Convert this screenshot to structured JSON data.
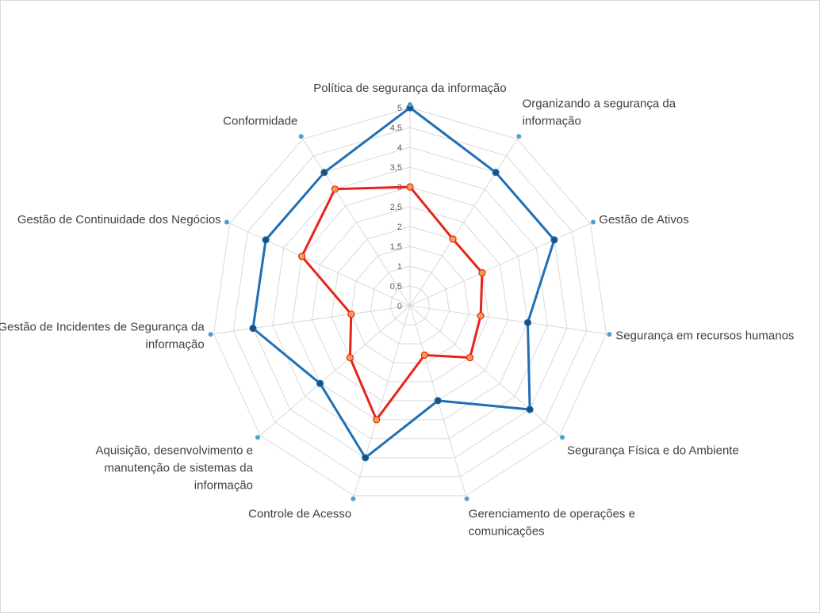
{
  "chart_data": {
    "type": "radar",
    "title": "",
    "categories": [
      "Política de segurança da informação",
      "Organizando a segurança da informação",
      "Gestão de Ativos",
      "Segurança em recursos humanos",
      "Segurança Física e do Ambiente",
      "Gerenciamento de operações e comunicações",
      "Controle de Acesso",
      "Aquisição, desenvolvimento e manutenção de sistemas da informação",
      "Gestão de Incidentes de Segurança da informação",
      "Gestão de Continuidade dos Negócios",
      "Conformidade"
    ],
    "category_label_lines": [
      [
        "Política de segurança da informação"
      ],
      [
        "Organizando a segurança da",
        "informação"
      ],
      [
        "Gestão de Ativos"
      ],
      [
        "Segurança em recursos humanos"
      ],
      [
        "Segurança Física e do Ambiente"
      ],
      [
        "Gerenciamento de operações e",
        "comunicações"
      ],
      [
        "Controle de Acesso"
      ],
      [
        "Aquisição, desenvolvimento e",
        "manutenção de sistemas da",
        "informação"
      ],
      [
        "Gestão de Incidentes de Segurança da",
        "informação"
      ],
      [
        "Gestão de Continuidade dos Negócios"
      ],
      [
        "Conformidade"
      ]
    ],
    "rlim": [
      0,
      5
    ],
    "ticks": [
      "0",
      "0,5",
      "1",
      "1,5",
      "2",
      "2,5",
      "3",
      "3,5",
      "4",
      "4,5",
      "5"
    ],
    "grid": true,
    "legend": "none",
    "series": [
      {
        "color": "#1f6fb5",
        "marker_color": "#1f4e79",
        "values": [
          5,
          4,
          4,
          3,
          4,
          2.5,
          4,
          3,
          4,
          4,
          4
        ]
      },
      {
        "color": "#e8231a",
        "marker_color": "#f4a24a",
        "values": [
          3,
          2,
          2,
          1.8,
          2,
          1.3,
          3,
          2,
          1.5,
          3,
          3.5
        ]
      }
    ],
    "colors": {
      "grid": "#d9d9d9",
      "outer_marker": "#4aa3c9"
    }
  }
}
